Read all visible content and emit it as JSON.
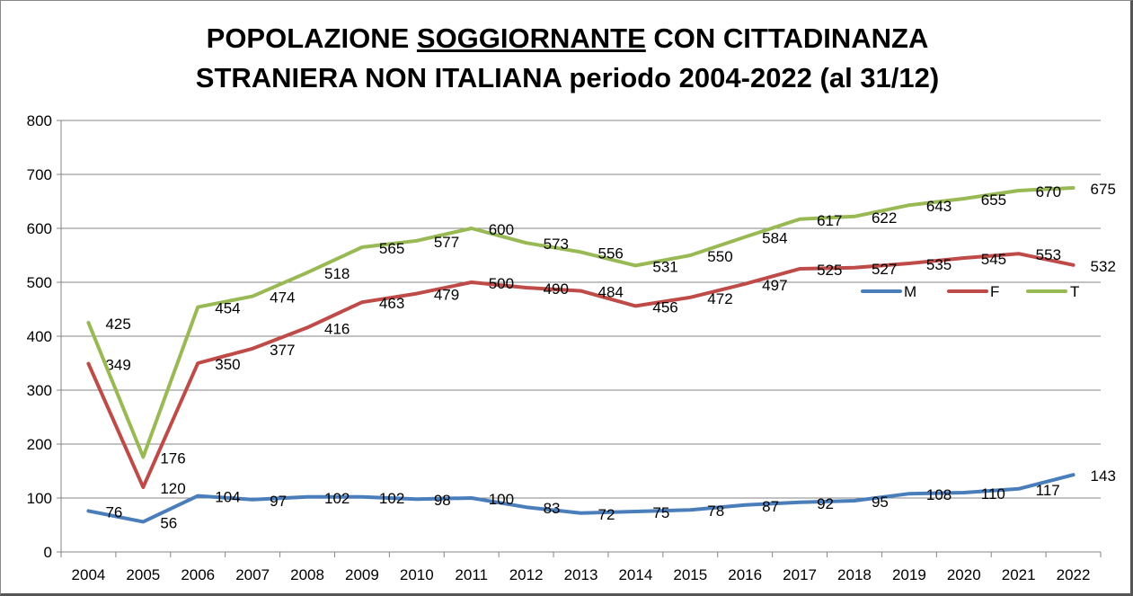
{
  "chart_data": {
    "type": "line",
    "title": {
      "line1_before": "POPOLAZIONE ",
      "line1_underlined": "SOGGIORNANTE",
      "line1_after": " CON CITTADINANZA",
      "line2": "STRANIERA NON ITALIANA periodo 2004-2022 (al 31/12)"
    },
    "xlabel": "",
    "ylabel": "",
    "ylim": [
      0,
      800
    ],
    "yticks": [
      0,
      100,
      200,
      300,
      400,
      500,
      600,
      700,
      800
    ],
    "grid": true,
    "legend_position": "right-middle",
    "categories": [
      "2004",
      "2005",
      "2006",
      "2007",
      "2008",
      "2009",
      "2010",
      "2011",
      "2012",
      "2013",
      "2014",
      "2015",
      "2016",
      "2017",
      "2018",
      "2019",
      "2020",
      "2021",
      "2022"
    ],
    "series": [
      {
        "name": "M",
        "color": "#4a7ebb",
        "values": [
          76,
          56,
          104,
          97,
          102,
          102,
          98,
          100,
          83,
          72,
          75,
          78,
          87,
          92,
          95,
          108,
          110,
          117,
          143
        ]
      },
      {
        "name": "F",
        "color": "#be4b48",
        "values": [
          349,
          120,
          350,
          377,
          416,
          463,
          479,
          500,
          490,
          484,
          456,
          472,
          497,
          525,
          527,
          535,
          545,
          553,
          532
        ]
      },
      {
        "name": "T",
        "color": "#98b954",
        "values": [
          425,
          176,
          454,
          474,
          518,
          565,
          577,
          600,
          573,
          556,
          531,
          550,
          584,
          617,
          622,
          643,
          655,
          670,
          675
        ]
      }
    ]
  }
}
